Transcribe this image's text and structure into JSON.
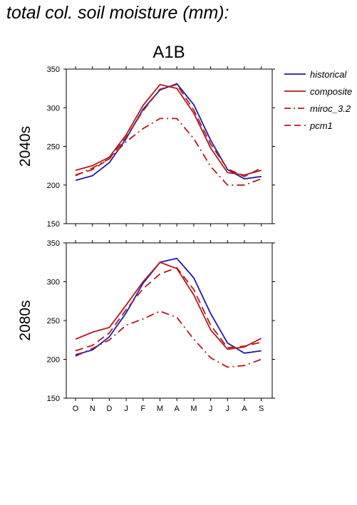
{
  "figure": {
    "title": "total col. soil moisture (mm):",
    "scenario": "A1B"
  },
  "chart_data": [
    {
      "type": "line",
      "panel_label": "2040s",
      "categories": [
        "O",
        "N",
        "D",
        "J",
        "F",
        "M",
        "A",
        "M",
        "J",
        "J",
        "A",
        "S"
      ],
      "ylim": [
        150,
        350
      ],
      "yticks": [
        150,
        200,
        250,
        300,
        350
      ],
      "series": [
        {
          "name": "historical",
          "color": "#1a1ab4",
          "dash": "solid",
          "values": [
            206,
            212,
            229,
            260,
            298,
            323,
            331,
            304,
            258,
            220,
            208,
            211
          ]
        },
        {
          "name": "composite",
          "color": "#b41a1a",
          "dash": "solid",
          "values": [
            219,
            225,
            236,
            265,
            303,
            330,
            325,
            293,
            248,
            216,
            213,
            219
          ]
        },
        {
          "name": "miroc_3.2",
          "color": "#b41a1a",
          "dash": "dashdot",
          "values": [
            212,
            222,
            234,
            256,
            273,
            286,
            286,
            260,
            224,
            200,
            200,
            208
          ]
        },
        {
          "name": "pcm1",
          "color": "#b41a1a",
          "dash": "dash",
          "values": [
            213,
            220,
            234,
            262,
            296,
            324,
            330,
            297,
            253,
            221,
            211,
            222
          ]
        }
      ]
    },
    {
      "type": "line",
      "panel_label": "2080s",
      "categories": [
        "O",
        "N",
        "D",
        "J",
        "F",
        "M",
        "A",
        "M",
        "J",
        "J",
        "A",
        "S"
      ],
      "ylim": [
        150,
        350
      ],
      "yticks": [
        150,
        200,
        250,
        300,
        350
      ],
      "series": [
        {
          "name": "historical",
          "color": "#1a1ab4",
          "dash": "solid",
          "values": [
            206,
            212,
            229,
            260,
            298,
            325,
            330,
            305,
            259,
            221,
            208,
            211
          ]
        },
        {
          "name": "composite",
          "color": "#b41a1a",
          "dash": "solid",
          "values": [
            226,
            235,
            241,
            270,
            300,
            325,
            317,
            283,
            238,
            213,
            216,
            227
          ]
        },
        {
          "name": "miroc_3.2",
          "color": "#b41a1a",
          "dash": "dashdot",
          "values": [
            204,
            214,
            225,
            244,
            252,
            262,
            254,
            226,
            202,
            190,
            192,
            200
          ]
        },
        {
          "name": "pcm1",
          "color": "#b41a1a",
          "dash": "dash",
          "values": [
            211,
            218,
            234,
            264,
            291,
            310,
            318,
            290,
            244,
            215,
            217,
            222
          ]
        }
      ]
    }
  ],
  "legend": {
    "placement": "right",
    "items": [
      {
        "label": "historical",
        "color": "#1a1ab4",
        "dash": "solid"
      },
      {
        "label": "composite",
        "color": "#b41a1a",
        "dash": "solid"
      },
      {
        "label": "miroc_3.2",
        "color": "#b41a1a",
        "dash": "dashdot"
      },
      {
        "label": "pcm1",
        "color": "#b41a1a",
        "dash": "dash"
      }
    ]
  }
}
